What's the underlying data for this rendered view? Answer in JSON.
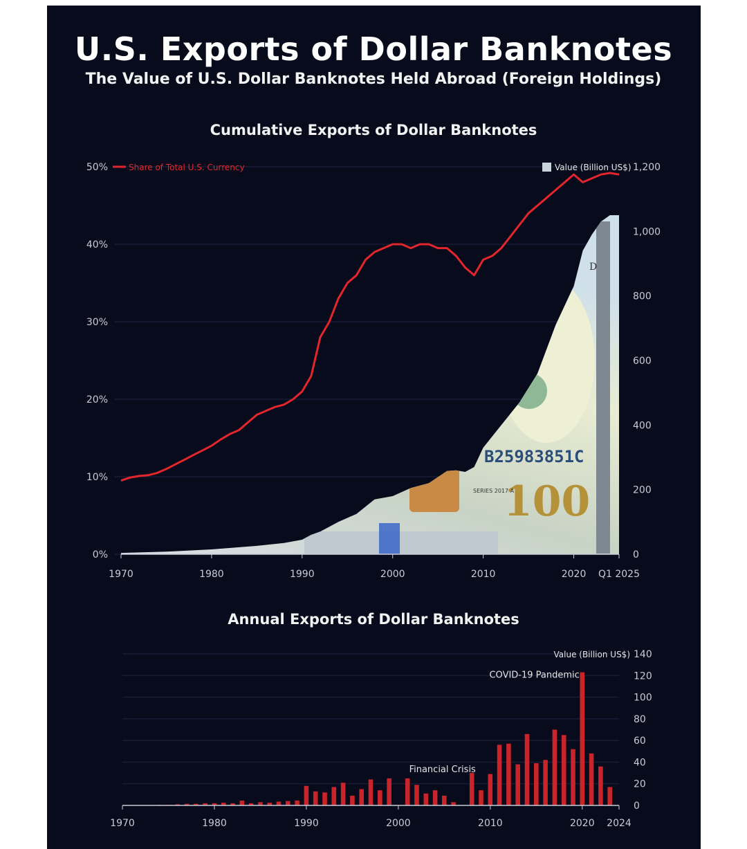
{
  "header": {
    "title": "U.S. Exports of Dollar Banknotes",
    "subtitle": "The Value of U.S. Dollar Banknotes Held Abroad (Foreign Holdings)"
  },
  "chart_data": [
    {
      "type": "line",
      "title": "Cumulative Exports of Dollar Banknotes",
      "legend_line": "Share of Total U.S. Currency",
      "legend_area": "Value (Billion US$)",
      "left_axis": {
        "ticks": [
          "0%",
          "10%",
          "20%",
          "30%",
          "40%",
          "50%"
        ],
        "range": [
          0,
          50
        ]
      },
      "right_axis": {
        "ticks": [
          "0",
          "200",
          "400",
          "600",
          "800",
          "1,000",
          "1,200"
        ],
        "range": [
          0,
          1200
        ]
      },
      "x_ticks": [
        "1970",
        "1980",
        "1990",
        "2000",
        "2010",
        "2020",
        "Q1 2025"
      ],
      "x_range": [
        1970,
        2025
      ],
      "series": [
        {
          "name": "Share of Total U.S. Currency",
          "axis": "left",
          "x": [
            1970,
            1971,
            1972,
            1973,
            1974,
            1975,
            1976,
            1977,
            1978,
            1979,
            1980,
            1981,
            1982,
            1983,
            1984,
            1985,
            1986,
            1987,
            1988,
            1989,
            1990,
            1991,
            1992,
            1993,
            1994,
            1995,
            1996,
            1997,
            1998,
            1999,
            2000,
            2001,
            2002,
            2003,
            2004,
            2005,
            2006,
            2007,
            2008,
            2009,
            2010,
            2011,
            2012,
            2013,
            2014,
            2015,
            2016,
            2017,
            2018,
            2019,
            2020,
            2021,
            2022,
            2023,
            2024,
            2025
          ],
          "values": [
            9.5,
            9.9,
            10.1,
            10.2,
            10.5,
            11.0,
            11.6,
            12.2,
            12.8,
            13.4,
            14.0,
            14.8,
            15.5,
            16.0,
            17.0,
            18.0,
            18.5,
            19.0,
            19.3,
            20.0,
            21.0,
            23.0,
            28.0,
            30.0,
            33.0,
            35.0,
            36.0,
            38.0,
            39.0,
            39.5,
            40.0,
            40.0,
            39.5,
            40.0,
            40.0,
            39.5,
            39.5,
            38.5,
            37.0,
            36.0,
            38.0,
            38.5,
            39.5,
            41.0,
            42.5,
            44.0,
            45.0,
            46.0,
            47.0,
            48.0,
            49.0,
            48.0,
            48.5,
            49.0,
            49.2,
            49.0
          ]
        },
        {
          "name": "Value (Billion US$)",
          "axis": "right",
          "x": [
            1970,
            1975,
            1980,
            1985,
            1988,
            1990,
            1991,
            1992,
            1994,
            1996,
            1998,
            2000,
            2002,
            2004,
            2006,
            2007,
            2008,
            2009,
            2010,
            2012,
            2014,
            2016,
            2018,
            2020,
            2021,
            2022,
            2023,
            2024,
            2025
          ],
          "values": [
            4,
            8,
            15,
            26,
            35,
            45,
            60,
            70,
            100,
            125,
            170,
            180,
            205,
            220,
            258,
            260,
            255,
            270,
            330,
            400,
            470,
            560,
            710,
            830,
            940,
            990,
            1030,
            1050,
            1050
          ]
        }
      ]
    },
    {
      "type": "bar",
      "title": "Annual Exports of Dollar Banknotes",
      "axis_label": "Value (Billion US$)",
      "y_ticks": [
        "0",
        "20",
        "40",
        "60",
        "80",
        "100",
        "120",
        "140"
      ],
      "ylim": [
        0,
        140
      ],
      "x_ticks": [
        "1970",
        "1980",
        "1990",
        "2000",
        "2010",
        "2020",
        "2024"
      ],
      "x_range": [
        1970,
        2024
      ],
      "annotations": [
        "COVID-19 Pandemic",
        "Financial Crisis"
      ],
      "categories": [
        1974,
        1975,
        1976,
        1977,
        1978,
        1979,
        1980,
        1981,
        1982,
        1983,
        1984,
        1985,
        1986,
        1987,
        1988,
        1989,
        1990,
        1991,
        1992,
        1993,
        1994,
        1995,
        1996,
        1997,
        1998,
        1999,
        2000,
        2001,
        2002,
        2003,
        2004,
        2005,
        2006,
        2007,
        2008,
        2009,
        2010,
        2011,
        2012,
        2013,
        2014,
        2015,
        2016,
        2017,
        2018,
        2019,
        2020,
        2021,
        2022,
        2023,
        2024
      ],
      "values": [
        0.5,
        0.5,
        1,
        1.5,
        1.5,
        2,
        2,
        2.5,
        2,
        4.5,
        2,
        3,
        2.5,
        3.5,
        4,
        4.5,
        18,
        13,
        12,
        17,
        21,
        9,
        15,
        24,
        14,
        25,
        0,
        25,
        19,
        11,
        14,
        9,
        3,
        0,
        30,
        14,
        29,
        56,
        57,
        38,
        66,
        39,
        42,
        70,
        65,
        52,
        123,
        48,
        36,
        17,
        0
      ]
    }
  ],
  "banknote": {
    "serial": "B25983851C",
    "denomination": "100",
    "series": "SERIES 2017 A",
    "letter": "D"
  }
}
